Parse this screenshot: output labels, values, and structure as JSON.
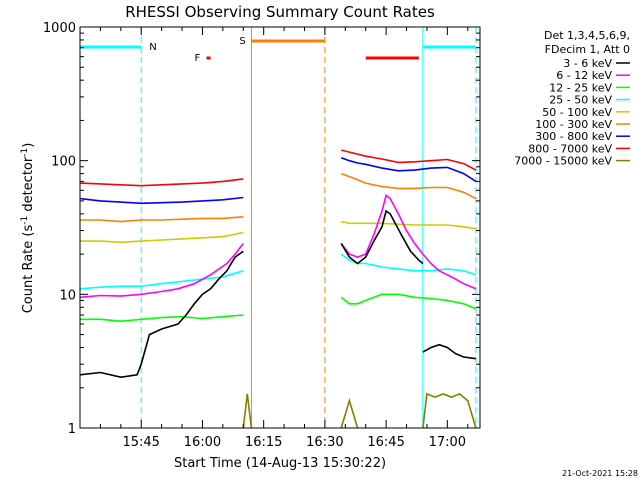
{
  "chart_data": {
    "type": "line",
    "title": "RHESSI Observing Summary Count Rates",
    "xlabel": "Start Time (14-Aug-13 15:30:22)",
    "ylabel": "Count Rate (s⁻¹ detector⁻¹)",
    "ylabel_main": "Count Rate (s",
    "ylabel_sup1": "-1",
    "ylabel_mid": " detector",
    "ylabel_sup2": "-1",
    "ylabel_end": ")",
    "x_unit": "minutes since 15:30",
    "xlim": [
      0,
      98
    ],
    "ylim": [
      1,
      1000
    ],
    "y_scale": "log",
    "x_ticks": [
      {
        "value": 15,
        "label": "15:45"
      },
      {
        "value": 30,
        "label": "16:00"
      },
      {
        "value": 45,
        "label": "16:15"
      },
      {
        "value": 60,
        "label": "16:30"
      },
      {
        "value": 75,
        "label": "16:45"
      },
      {
        "value": 90,
        "label": "17:00"
      }
    ],
    "y_ticks": [
      {
        "value": 1,
        "label": "1"
      },
      {
        "value": 10,
        "label": "10"
      },
      {
        "value": 100,
        "label": "100"
      },
      {
        "value": 1000,
        "label": "1000"
      }
    ],
    "legend": {
      "placement": "right",
      "header": [
        "Det 1,3,4,5,6,9,",
        "FDecim 1, Att 0"
      ]
    },
    "series": [
      {
        "name": "3 - 6 keV",
        "color": "#000000",
        "segments": [
          [
            [
              0,
              2.5
            ],
            [
              5,
              2.6
            ],
            [
              10,
              2.4
            ],
            [
              14,
              2.5
            ],
            [
              15,
              3
            ],
            [
              17,
              5
            ],
            [
              20,
              5.5
            ],
            [
              24,
              6
            ],
            [
              26,
              7
            ],
            [
              28,
              8.5
            ],
            [
              30,
              10
            ],
            [
              32,
              11
            ],
            [
              34,
              13
            ],
            [
              36,
              15
            ],
            [
              38,
              19
            ],
            [
              40,
              21
            ]
          ],
          [
            [
              64,
              24
            ],
            [
              66,
              19
            ],
            [
              68,
              17
            ],
            [
              70,
              19
            ],
            [
              72,
              25
            ],
            [
              74,
              32
            ],
            [
              75,
              42
            ],
            [
              76,
              40
            ],
            [
              77,
              35
            ],
            [
              79,
              27
            ],
            [
              81,
              21
            ],
            [
              83,
              18
            ],
            [
              84,
              17
            ]
          ],
          [
            [
              84,
              3.7
            ],
            [
              86,
              4
            ],
            [
              88,
              4.2
            ],
            [
              90,
              4
            ],
            [
              92,
              3.6
            ],
            [
              94,
              3.4
            ],
            [
              97,
              3.3
            ]
          ]
        ]
      },
      {
        "name": "6 - 12 keV",
        "color": "#ff00ff",
        "segments": [
          [
            [
              0,
              9.5
            ],
            [
              5,
              9.8
            ],
            [
              10,
              9.7
            ],
            [
              15,
              10
            ],
            [
              20,
              10.5
            ],
            [
              24,
              11
            ],
            [
              28,
              12
            ],
            [
              32,
              14
            ],
            [
              36,
              17
            ],
            [
              38,
              20
            ],
            [
              40,
              24
            ]
          ],
          [
            [
              64,
              24
            ],
            [
              66,
              20
            ],
            [
              68,
              19
            ],
            [
              70,
              20
            ],
            [
              72,
              28
            ],
            [
              74,
              42
            ],
            [
              75,
              55
            ],
            [
              76,
              52
            ],
            [
              78,
              40
            ],
            [
              80,
              30
            ],
            [
              82,
              24
            ],
            [
              84,
              20
            ],
            [
              86,
              17
            ],
            [
              88,
              15
            ],
            [
              90,
              14
            ],
            [
              92,
              13
            ],
            [
              94,
              12
            ],
            [
              97,
              11
            ]
          ]
        ]
      },
      {
        "name": "12 - 25 keV",
        "color": "#00ff00",
        "segments": [
          [
            [
              0,
              6.5
            ],
            [
              5,
              6.5
            ],
            [
              10,
              6.3
            ],
            [
              15,
              6.5
            ],
            [
              20,
              6.7
            ],
            [
              25,
              6.8
            ],
            [
              30,
              6.6
            ],
            [
              35,
              6.8
            ],
            [
              40,
              7
            ]
          ],
          [
            [
              64,
              9.5
            ],
            [
              66,
              8.5
            ],
            [
              68,
              8.5
            ],
            [
              70,
              9
            ],
            [
              74,
              10
            ],
            [
              78,
              10
            ],
            [
              82,
              9.5
            ],
            [
              86,
              9.3
            ],
            [
              90,
              9
            ],
            [
              94,
              8.5
            ],
            [
              97,
              7.8
            ]
          ]
        ]
      },
      {
        "name": "25 - 50 keV",
        "color": "#00ffff",
        "segments": [
          [
            [
              0,
              11
            ],
            [
              5,
              11.3
            ],
            [
              10,
              11.5
            ],
            [
              15,
              11.5
            ],
            [
              20,
              12
            ],
            [
              25,
              12.5
            ],
            [
              30,
              13
            ],
            [
              35,
              13.5
            ],
            [
              40,
              15
            ]
          ],
          [
            [
              64,
              20
            ],
            [
              66,
              18
            ],
            [
              68,
              17
            ],
            [
              70,
              17
            ],
            [
              74,
              16
            ],
            [
              78,
              15.5
            ],
            [
              82,
              15
            ],
            [
              86,
              15
            ],
            [
              90,
              15.5
            ],
            [
              94,
              15
            ],
            [
              97,
              14
            ]
          ]
        ]
      },
      {
        "name": "50 - 100 keV",
        "color": "#cccc00",
        "segments": [
          [
            [
              0,
              25
            ],
            [
              5,
              25
            ],
            [
              10,
              24.5
            ],
            [
              15,
              25
            ],
            [
              20,
              25.5
            ],
            [
              25,
              26
            ],
            [
              30,
              26.5
            ],
            [
              35,
              27
            ],
            [
              40,
              29
            ]
          ],
          [
            [
              64,
              35
            ],
            [
              66,
              34
            ],
            [
              70,
              34
            ],
            [
              74,
              34
            ],
            [
              78,
              33.5
            ],
            [
              82,
              33
            ],
            [
              86,
              33
            ],
            [
              90,
              33
            ],
            [
              94,
              32
            ],
            [
              97,
              31
            ]
          ]
        ]
      },
      {
        "name": "100 - 300 keV",
        "color": "#ff8000",
        "segments": [
          [
            [
              0,
              36
            ],
            [
              5,
              36
            ],
            [
              10,
              35
            ],
            [
              15,
              36
            ],
            [
              20,
              36
            ],
            [
              25,
              36.5
            ],
            [
              30,
              37
            ],
            [
              35,
              37
            ],
            [
              40,
              38
            ]
          ],
          [
            [
              64,
              80
            ],
            [
              66,
              76
            ],
            [
              68,
              72
            ],
            [
              70,
              68
            ],
            [
              74,
              64
            ],
            [
              78,
              62
            ],
            [
              82,
              62
            ],
            [
              86,
              63
            ],
            [
              90,
              63
            ],
            [
              94,
              58
            ],
            [
              97,
              52
            ]
          ]
        ]
      },
      {
        "name": "300 - 800 keV",
        "color": "#0000ff",
        "segments": [
          [
            [
              0,
              52
            ],
            [
              5,
              50
            ],
            [
              10,
              49
            ],
            [
              15,
              48
            ],
            [
              20,
              48.5
            ],
            [
              25,
              49
            ],
            [
              30,
              50
            ],
            [
              35,
              51
            ],
            [
              40,
              53
            ]
          ],
          [
            [
              64,
              105
            ],
            [
              66,
              100
            ],
            [
              68,
              96
            ],
            [
              70,
              94
            ],
            [
              74,
              88
            ],
            [
              78,
              84
            ],
            [
              82,
              85
            ],
            [
              86,
              88
            ],
            [
              90,
              89
            ],
            [
              94,
              80
            ],
            [
              97,
              70
            ]
          ]
        ]
      },
      {
        "name": "800 - 7000 keV",
        "color": "#ff0000",
        "segments": [
          [
            [
              0,
              68
            ],
            [
              5,
              67
            ],
            [
              10,
              66
            ],
            [
              15,
              65
            ],
            [
              20,
              66
            ],
            [
              25,
              67
            ],
            [
              30,
              68
            ],
            [
              35,
              70
            ],
            [
              40,
              73
            ]
          ],
          [
            [
              64,
              120
            ],
            [
              66,
              116
            ],
            [
              68,
              112
            ],
            [
              70,
              108
            ],
            [
              74,
              103
            ],
            [
              78,
              97
            ],
            [
              82,
              98
            ],
            [
              86,
              100
            ],
            [
              90,
              102
            ],
            [
              94,
              95
            ],
            [
              97,
              85
            ]
          ]
        ]
      },
      {
        "name": "7000 - 15000 keV",
        "color": "#808000",
        "segments": [
          [
            [
              40,
              1
            ],
            [
              41,
              1.8
            ],
            [
              42,
              1
            ]
          ],
          [
            [
              64,
              1
            ],
            [
              66,
              1.6
            ],
            [
              68,
              1
            ]
          ],
          [
            [
              84,
              1
            ],
            [
              85,
              1.8
            ],
            [
              87,
              1.7
            ],
            [
              89,
              1.8
            ],
            [
              91,
              1.7
            ],
            [
              93,
              1.8
            ],
            [
              95,
              1.6
            ],
            [
              97,
              1
            ]
          ]
        ]
      }
    ],
    "flags": {
      "night_lines_x": [
        0,
        15,
        84,
        97
      ],
      "night_labels": [
        "N"
      ],
      "night_bars": [
        [
          0,
          15
        ],
        [
          84,
          97
        ]
      ],
      "saa_lines_x": [
        42,
        60
      ],
      "saa_label": "S",
      "saa_bar": [
        42,
        60
      ],
      "flare_label": "F",
      "flare_bars": [
        [
          31,
          32
        ],
        [
          70,
          83
        ]
      ]
    }
  },
  "footer": {
    "timestamp": "21-Oct-2021 15:28"
  }
}
